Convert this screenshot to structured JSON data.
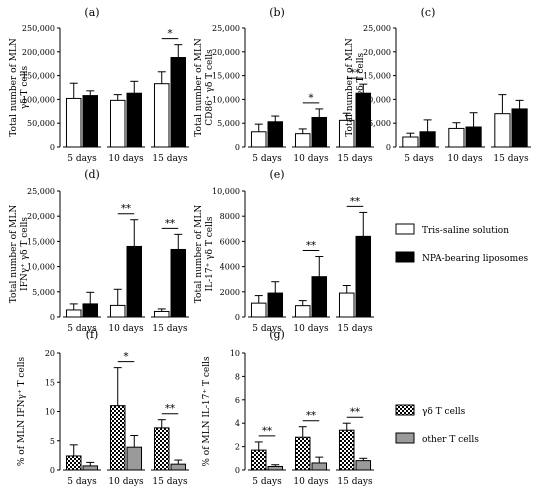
{
  "colors": {
    "tris": "#ffffff",
    "npa": "#000000",
    "other": "#9a9a9a",
    "stroke": "#000000"
  },
  "legends": [
    {
      "entries": [
        {
          "label": "Tris-saline solution",
          "style": "white"
        },
        {
          "label": "NPA-bearing liposomes",
          "style": "black"
        }
      ]
    },
    {
      "entries": [
        {
          "label": "γδ T cells",
          "style": "checker"
        },
        {
          "label": "other T cells",
          "style": "gray"
        }
      ]
    }
  ],
  "chart_data": [
    {
      "type": "bar",
      "panel": "(a)",
      "ylabel": [
        "Total number of MLN",
        "γδ T cells"
      ],
      "categories": [
        "5 days",
        "10 days",
        "15 days"
      ],
      "ylim": [
        0,
        250000
      ],
      "yticks": [
        "0",
        "50,000",
        "100,000",
        "150,000",
        "200,000",
        "250,000"
      ],
      "series": [
        {
          "style": "white",
          "values": [
            102000,
            98000,
            133000
          ],
          "errors": [
            32000,
            12000,
            25000
          ]
        },
        {
          "style": "black",
          "values": [
            108000,
            113000,
            188000
          ],
          "errors": [
            10000,
            25000,
            27000
          ]
        }
      ],
      "significance": [
        {
          "category": 2,
          "label": "*"
        }
      ]
    },
    {
      "type": "bar",
      "panel": "(b)",
      "ylabel": [
        "Total number of MLN",
        "CD86⁺ γδ T cells"
      ],
      "categories": [
        "5 days",
        "10 days",
        "15 days"
      ],
      "ylim": [
        0,
        25000
      ],
      "yticks": [
        "0",
        "5,000",
        "10,000",
        "15,000",
        "20,000",
        "25,000"
      ],
      "series": [
        {
          "style": "white",
          "values": [
            3200,
            2800,
            5600
          ],
          "errors": [
            1600,
            1000,
            1500
          ]
        },
        {
          "style": "black",
          "values": [
            5300,
            6200,
            11300
          ],
          "errors": [
            1200,
            1800,
            1900
          ]
        }
      ],
      "significance": [
        {
          "category": 1,
          "label": "*"
        },
        {
          "category": 2,
          "label": "**"
        }
      ]
    },
    {
      "type": "bar",
      "panel": "(c)",
      "ylabel": [
        "Total number of MLN",
        "IL-4⁺ γδ T cells"
      ],
      "categories": [
        "5 days",
        "10 days",
        "15 days"
      ],
      "ylim": [
        0,
        25000
      ],
      "yticks": [
        "0",
        "5,000",
        "10,000",
        "15,000",
        "20,000",
        "25,000"
      ],
      "series": [
        {
          "style": "white",
          "values": [
            2100,
            3900,
            7000
          ],
          "errors": [
            800,
            1200,
            4000
          ]
        },
        {
          "style": "black",
          "values": [
            3200,
            4200,
            8000
          ],
          "errors": [
            2500,
            3000,
            1800
          ]
        }
      ],
      "significance": []
    },
    {
      "type": "bar",
      "panel": "(d)",
      "ylabel": [
        "Total number of MLN",
        "IFNγ⁺ γδ T cells"
      ],
      "categories": [
        "5 days",
        "10 days",
        "15 days"
      ],
      "ylim": [
        0,
        25000
      ],
      "yticks": [
        "0",
        "5,000",
        "10,000",
        "15,000",
        "20,000",
        "25,000"
      ],
      "series": [
        {
          "style": "white",
          "values": [
            1400,
            2300,
            1100
          ],
          "errors": [
            1200,
            3200,
            500
          ]
        },
        {
          "style": "black",
          "values": [
            2600,
            14000,
            13400
          ],
          "errors": [
            2300,
            5300,
            3000
          ]
        }
      ],
      "significance": [
        {
          "category": 1,
          "label": "**"
        },
        {
          "category": 2,
          "label": "**"
        }
      ]
    },
    {
      "type": "bar",
      "panel": "(e)",
      "ylabel": [
        "Total number of MLN",
        "IL-17⁺ γδ T cells"
      ],
      "categories": [
        "5 days",
        "10 days",
        "15 days"
      ],
      "ylim": [
        0,
        10000
      ],
      "yticks": [
        "0",
        "2000",
        "4000",
        "6000",
        "8000",
        "10,000"
      ],
      "series": [
        {
          "style": "white",
          "values": [
            1100,
            900,
            1900
          ],
          "errors": [
            600,
            400,
            600
          ]
        },
        {
          "style": "black",
          "values": [
            1900,
            3200,
            6400
          ],
          "errors": [
            900,
            1600,
            1900
          ]
        }
      ],
      "significance": [
        {
          "category": 1,
          "label": "**"
        },
        {
          "category": 2,
          "label": "**"
        }
      ]
    },
    {
      "type": "bar",
      "panel": "(f)",
      "ylabel": [
        "% of MLN IFNγ⁺ T cells"
      ],
      "categories": [
        "5 days",
        "10 days",
        "15 days"
      ],
      "ylim": [
        0,
        20
      ],
      "yticks": [
        "0",
        "5",
        "10",
        "15",
        "20"
      ],
      "series": [
        {
          "style": "checker",
          "values": [
            2.4,
            11.0,
            7.2
          ],
          "errors": [
            1.9,
            6.5,
            1.4
          ]
        },
        {
          "style": "gray",
          "values": [
            0.7,
            3.9,
            1.0
          ],
          "errors": [
            0.6,
            2.0,
            0.7
          ]
        }
      ],
      "significance": [
        {
          "category": 1,
          "label": "*"
        },
        {
          "category": 2,
          "label": "**"
        }
      ]
    },
    {
      "type": "bar",
      "panel": "(g)",
      "ylabel": [
        "% of MLN IL-17⁺ T cells"
      ],
      "categories": [
        "5 days",
        "10 days",
        "15 days"
      ],
      "ylim": [
        0,
        10
      ],
      "yticks": [
        "0",
        "2",
        "4",
        "6",
        "8",
        "10"
      ],
      "series": [
        {
          "style": "checker",
          "values": [
            1.7,
            2.8,
            3.4
          ],
          "errors": [
            0.7,
            0.9,
            0.6
          ]
        },
        {
          "style": "gray",
          "values": [
            0.3,
            0.6,
            0.8
          ],
          "errors": [
            0.15,
            0.5,
            0.2
          ]
        }
      ],
      "significance": [
        {
          "category": 0,
          "label": "**"
        },
        {
          "category": 1,
          "label": "**"
        },
        {
          "category": 2,
          "label": "**"
        }
      ]
    }
  ]
}
